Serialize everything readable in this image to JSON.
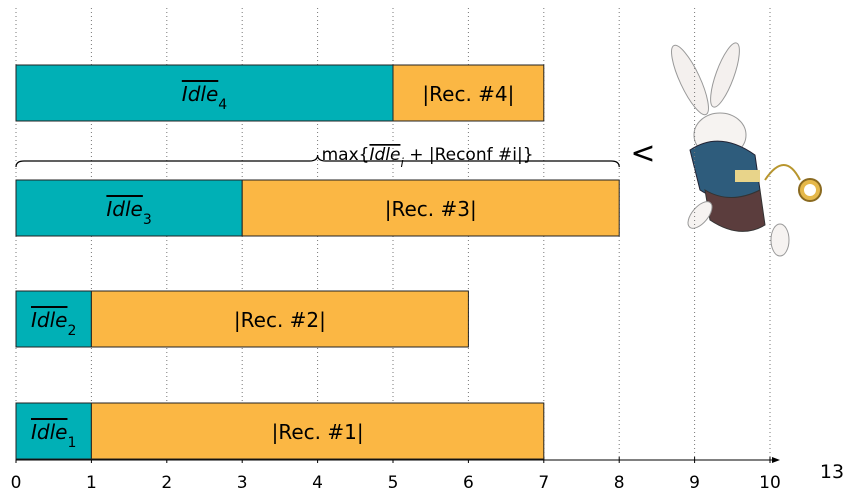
{
  "chart_data": {
    "type": "bar",
    "orientation": "horizontal",
    "stacked": true,
    "categories": [
      null,
      null,
      null,
      null
    ],
    "series": [
      {
        "color": "#00b0b6",
        "values": [
          5,
          3,
          1,
          1
        ],
        "labels": [
          {
            "text": "Idle",
            "sub": "4"
          },
          {
            "text": "Idle",
            "sub": "3"
          },
          {
            "text": "Idle",
            "sub": "2"
          },
          {
            "text": "Idle",
            "sub": "1"
          }
        ]
      },
      {
        "color": "#fbb744",
        "values": [
          2,
          5,
          5,
          6
        ],
        "labels": [
          {
            "text": "|Rec. #4|"
          },
          {
            "text": "|Rec. #3|"
          },
          {
            "text": "|Rec. #2|"
          },
          {
            "text": "|Rec. #1|"
          }
        ]
      }
    ],
    "xlim": [
      0,
      10
    ],
    "xticks": [
      0,
      1,
      2,
      3,
      4,
      5,
      6,
      7,
      8,
      9,
      10
    ],
    "grid": true,
    "annotation": {
      "prefix": "max{",
      "idle": "Idle",
      "sub": "i",
      "suffix": " + |Reconf #i|}",
      "span": [
        0,
        8
      ],
      "compare": "<"
    },
    "page_number": "13"
  }
}
